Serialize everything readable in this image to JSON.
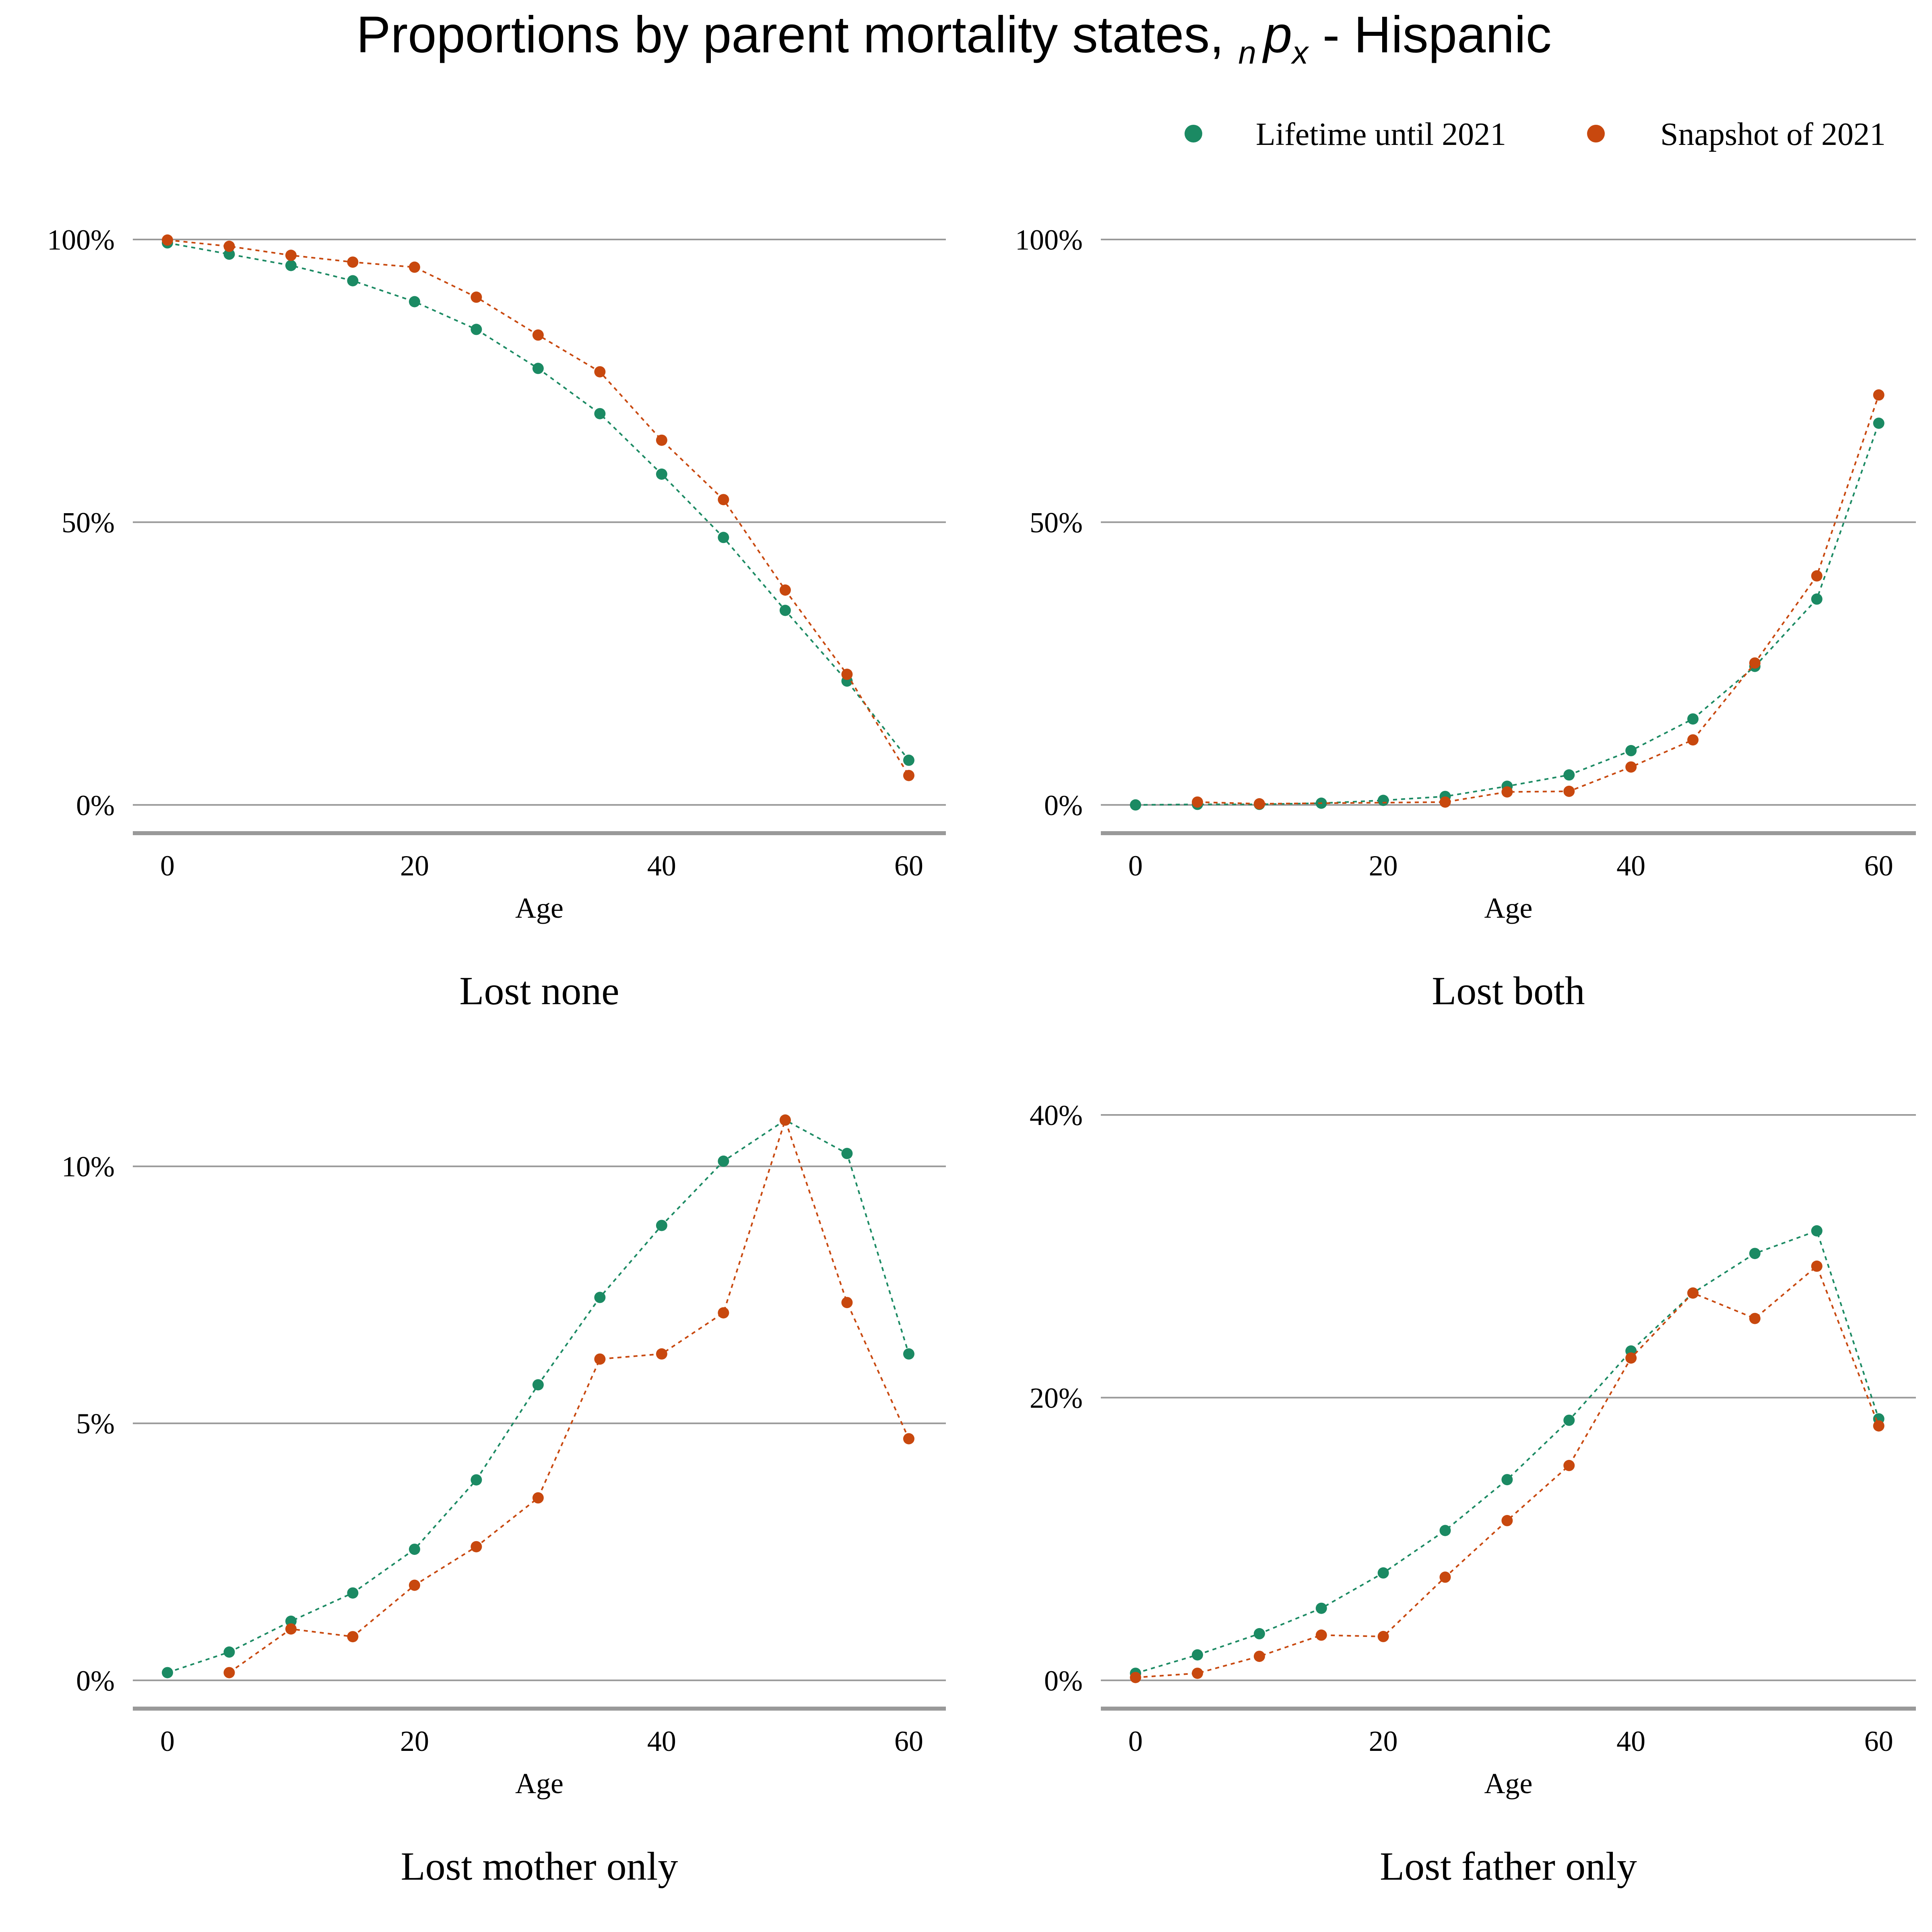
{
  "title": {
    "main": "Proportions by parent mortality states, ",
    "sub_n": "n",
    "p": "p",
    "sub_x": "x",
    "rest": " - Hispanic"
  },
  "legend": [
    {
      "name": "Lifetime until 2021",
      "color": "#1b8a63"
    },
    {
      "name": "Snapshot of 2021",
      "color": "#c8480e"
    }
  ],
  "chart_data": [
    {
      "type": "scatter",
      "title": "Lost none",
      "xlabel": "Age",
      "ylabel": "",
      "x": [
        0,
        5,
        10,
        15,
        20,
        25,
        30,
        35,
        40,
        45,
        50,
        55,
        60
      ],
      "xticks": [
        0,
        20,
        40,
        60
      ],
      "xticklabels": [
        "0",
        "20",
        "40",
        "60"
      ],
      "yticks": [
        0,
        50,
        100
      ],
      "yticklabels": [
        "0%",
        "50%",
        "100%"
      ],
      "xlim": [
        -2.8,
        63
      ],
      "ylim": [
        -5,
        100
      ],
      "grid": true,
      "series": [
        {
          "name": "Lifetime until 2021",
          "color": "#1b8a63",
          "values": [
            99.4,
            97.4,
            95.4,
            92.7,
            89.0,
            84.1,
            77.2,
            69.2,
            58.5,
            47.3,
            34.4,
            21.9,
            7.9
          ]
        },
        {
          "name": "Snapshot of 2021",
          "color": "#c8480e",
          "values": [
            99.9,
            98.8,
            97.2,
            96.0,
            95.1,
            89.8,
            83.1,
            76.6,
            64.5,
            54.0,
            38.0,
            23.1,
            5.2
          ]
        }
      ]
    },
    {
      "type": "scatter",
      "title": "Lost both",
      "xlabel": "Age",
      "ylabel": "",
      "x": [
        0,
        5,
        10,
        15,
        20,
        25,
        30,
        35,
        40,
        45,
        50,
        55,
        60
      ],
      "xticks": [
        0,
        20,
        40,
        60
      ],
      "xticklabels": [
        "0",
        "20",
        "40",
        "60"
      ],
      "yticks": [
        0,
        50,
        100
      ],
      "yticklabels": [
        "0%",
        "50%",
        "100%"
      ],
      "xlim": [
        -2.8,
        63
      ],
      "ylim": [
        -5,
        100
      ],
      "grid": true,
      "series": [
        {
          "name": "Lifetime until 2021",
          "color": "#1b8a63",
          "values": [
            0.0,
            0.1,
            0.1,
            0.3,
            0.8,
            1.5,
            3.3,
            5.3,
            9.6,
            15.2,
            24.5,
            36.4,
            67.5
          ]
        },
        {
          "name": "Snapshot of 2021",
          "color": "#c8480e",
          "values": [
            null,
            0.5,
            0.2,
            null,
            null,
            0.5,
            2.3,
            2.4,
            6.7,
            11.5,
            25.1,
            40.5,
            72.5
          ]
        }
      ]
    },
    {
      "type": "scatter",
      "title": "Lost mother only",
      "xlabel": "Age",
      "ylabel": "",
      "x": [
        0,
        5,
        10,
        15,
        20,
        25,
        30,
        35,
        40,
        45,
        50,
        55,
        60
      ],
      "xticks": [
        0,
        20,
        40,
        60
      ],
      "xticklabels": [
        "0",
        "20",
        "40",
        "60"
      ],
      "yticks": [
        0,
        5,
        10
      ],
      "yticklabels": [
        "0%",
        "5%",
        "10%"
      ],
      "xlim": [
        -2.8,
        63
      ],
      "ylim": [
        -0.55,
        11
      ],
      "grid": true,
      "series": [
        {
          "name": "Lifetime until 2021",
          "color": "#1b8a63",
          "values": [
            0.15,
            0.55,
            1.15,
            1.7,
            2.55,
            3.9,
            5.75,
            7.45,
            8.85,
            10.1,
            10.9,
            10.25,
            6.35
          ]
        },
        {
          "name": "Snapshot of 2021",
          "color": "#c8480e",
          "values": [
            null,
            0.15,
            1.0,
            0.85,
            1.85,
            2.6,
            3.55,
            6.25,
            6.35,
            7.15,
            10.9,
            7.35,
            4.7
          ]
        }
      ]
    },
    {
      "type": "scatter",
      "title": "Lost father only",
      "xlabel": "Age",
      "ylabel": "",
      "x": [
        0,
        5,
        10,
        15,
        20,
        25,
        30,
        35,
        40,
        45,
        50,
        55,
        60
      ],
      "xticks": [
        0,
        20,
        40,
        60
      ],
      "xticklabels": [
        "0",
        "20",
        "40",
        "60"
      ],
      "yticks": [
        0,
        20,
        40
      ],
      "yticklabels": [
        "0%",
        "20%",
        "40%"
      ],
      "xlim": [
        -2.8,
        63
      ],
      "ylim": [
        -2,
        40
      ],
      "grid": true,
      "series": [
        {
          "name": "Lifetime until 2021",
          "color": "#1b8a63",
          "values": [
            0.5,
            1.8,
            3.3,
            5.1,
            7.6,
            10.6,
            14.2,
            18.4,
            23.3,
            27.4,
            30.2,
            31.8,
            18.5
          ]
        },
        {
          "name": "Snapshot of 2021",
          "color": "#c8480e",
          "values": [
            0.2,
            0.5,
            1.7,
            3.2,
            3.1,
            7.3,
            11.3,
            15.2,
            22.8,
            27.4,
            25.6,
            29.3,
            18.0
          ]
        }
      ]
    }
  ]
}
